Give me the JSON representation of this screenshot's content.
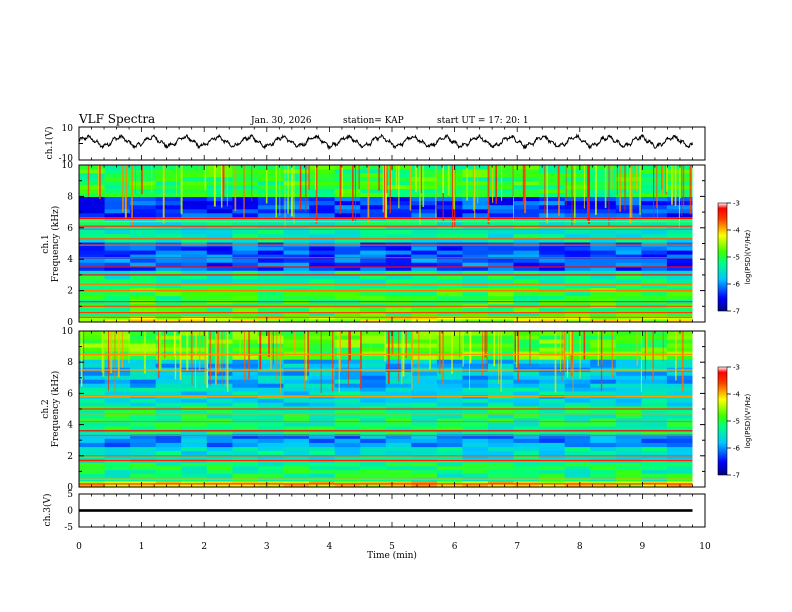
{
  "header": {
    "title": "VLF Spectra",
    "date": "Jan. 30, 2026",
    "station": "station= KAP",
    "start": "start  UT =   17: 20: 1"
  },
  "chart_data": [
    {
      "type": "line",
      "name": "ch1-waveform",
      "ylabel": "ch.1(V)",
      "ylim": [
        -10,
        10
      ],
      "yticks": [
        "10",
        "-10"
      ],
      "x_range_min": [
        0,
        9.8
      ],
      "description_values": "oscillating signal, roughly -2.5 to 4.5 V, period about 0.5 min"
    },
    {
      "type": "heatmap",
      "name": "ch1-spectrogram",
      "ylabel": "ch.1",
      "ylabel2": "Frequency (kHz)",
      "ylim": [
        0,
        10
      ],
      "yticks": [
        "0",
        "2",
        "4",
        "6",
        "8",
        "10"
      ],
      "x_range_min": [
        0,
        9.8
      ],
      "colorbar": {
        "label": "log(PSD)(V²/Hz)",
        "range": [
          -7,
          -3
        ],
        "ticks": [
          "-3",
          "-4",
          "-5",
          "-6",
          "-7"
        ]
      },
      "bands": [
        {
          "from": 0.0,
          "to": 0.4,
          "level": -4.3
        },
        {
          "from": 0.4,
          "to": 2.2,
          "level": -5.0
        },
        {
          "from": 2.2,
          "to": 3.3,
          "level": -5.3
        },
        {
          "from": 3.3,
          "to": 5.1,
          "level": -6.2
        },
        {
          "from": 5.1,
          "to": 6.7,
          "level": -5.4
        },
        {
          "from": 6.7,
          "to": 8.0,
          "level": -6.3
        },
        {
          "from": 8.0,
          "to": 10.0,
          "level": -5.0
        }
      ],
      "lines_khz": [
        0.3,
        0.6,
        1.0,
        1.3,
        2.0,
        2.4,
        3.0,
        3.5,
        4.1,
        4.9,
        5.3,
        5.9,
        6.1,
        6.4,
        6.6
      ]
    },
    {
      "type": "heatmap",
      "name": "ch2-spectrogram",
      "ylabel": "ch.2",
      "ylabel2": "Frequency (kHz)",
      "ylim": [
        0,
        10
      ],
      "yticks": [
        "0",
        "2",
        "4",
        "6",
        "8",
        "10"
      ],
      "x_range_min": [
        0,
        9.8
      ],
      "colorbar": {
        "label": "log(PSD)(V²/Hz)",
        "range": [
          -7,
          -3
        ],
        "ticks": [
          "-3",
          "-4",
          "-5",
          "-6",
          "-7"
        ]
      },
      "bands": [
        {
          "from": 0.0,
          "to": 0.4,
          "level": -4.2
        },
        {
          "from": 0.4,
          "to": 1.6,
          "level": -5.2
        },
        {
          "from": 1.6,
          "to": 2.6,
          "level": -5.5
        },
        {
          "from": 2.6,
          "to": 3.4,
          "level": -6.0
        },
        {
          "from": 3.4,
          "to": 5.2,
          "level": -5.2
        },
        {
          "from": 5.2,
          "to": 6.4,
          "level": -5.6
        },
        {
          "from": 6.4,
          "to": 8.2,
          "level": -5.8
        },
        {
          "from": 8.2,
          "to": 10.0,
          "level": -4.8
        }
      ],
      "lines_khz": [
        0.2,
        0.5,
        1.7,
        2.0,
        3.3,
        3.6,
        4.2,
        4.7,
        5.0,
        5.8,
        7.5,
        8.5
      ]
    },
    {
      "type": "line",
      "name": "ch3-waveform",
      "ylabel": "ch.3(V)",
      "ylim": [
        -5,
        5
      ],
      "yticks": [
        "5",
        "0",
        "-5"
      ],
      "x_range_min": [
        0,
        9.8
      ],
      "level_v": 0,
      "band_v": [
        -0.4,
        0.4
      ]
    }
  ],
  "xaxis": {
    "label": "Time  (min)",
    "range": [
      0,
      10
    ],
    "ticks": [
      "0",
      "1",
      "2",
      "3",
      "4",
      "5",
      "6",
      "7",
      "8",
      "9",
      "10"
    ]
  }
}
